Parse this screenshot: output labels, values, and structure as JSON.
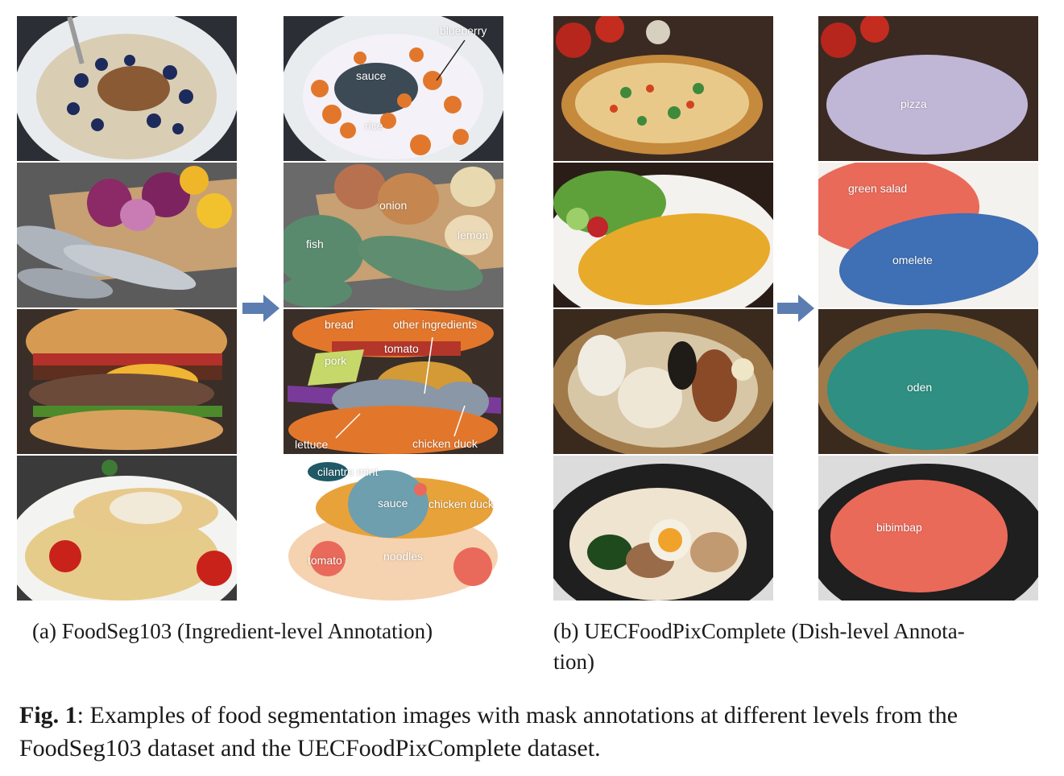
{
  "panels": {
    "foodseg": {
      "caption": "(a) FoodSeg103 (Ingredient-level Annotation)",
      "rows": [
        {
          "labels": [
            "blueberry",
            "sauce",
            "rice"
          ]
        },
        {
          "labels": [
            "onion",
            "fish",
            "lemon"
          ]
        },
        {
          "labels": [
            "bread",
            "other ingredients",
            "tomato",
            "pork",
            "lettuce",
            "chicken duck"
          ]
        },
        {
          "labels": [
            "cilantro mint",
            "sauce",
            "chicken duck",
            "tomato",
            "noodles"
          ]
        }
      ]
    },
    "uec": {
      "caption_line1": "(b)  UECFoodPixComplete  (Dish-level  Annota-",
      "caption_line2": "tion)",
      "rows": [
        {
          "labels": [
            "pizza"
          ]
        },
        {
          "labels": [
            "green salad",
            "omelete"
          ]
        },
        {
          "labels": [
            "oden"
          ]
        },
        {
          "labels": [
            "bibimbap"
          ]
        }
      ]
    }
  },
  "figure": {
    "label": "Fig. 1",
    "text": ": Examples of food segmentation images with mask annotations at different levels from the FoodSeg103 dataset and the UECFoodPixComplete dataset."
  },
  "colors": {
    "arrow": "#5b7db1",
    "mask_orange": "#e2772c",
    "mask_blue": "#3f6fb4",
    "mask_teal": "#2e8f82",
    "mask_salmon": "#ea6a5a",
    "mask_green": "#5a8a6e",
    "mask_lavender": "#c0b6d6"
  }
}
